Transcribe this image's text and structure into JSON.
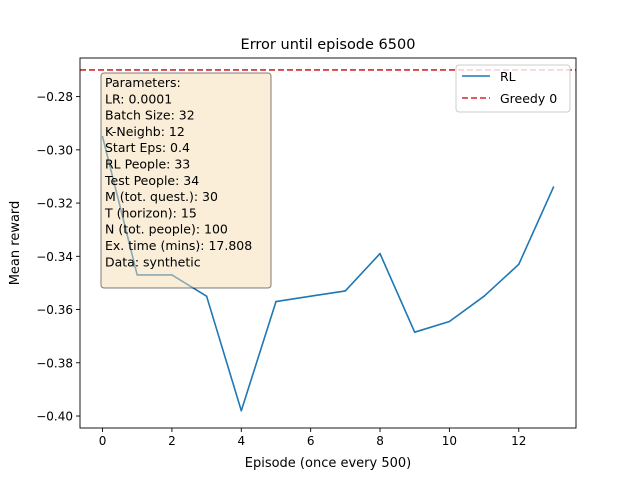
{
  "chart_data": {
    "type": "line",
    "title": "Error until episode 6500",
    "xlabel": "Episode (once every 500)",
    "ylabel": "Mean reward",
    "xlim": [
      -0.65,
      13.65
    ],
    "ylim": [
      -0.4045,
      -0.2655
    ],
    "xticks": [
      0,
      2,
      4,
      6,
      8,
      10,
      12
    ],
    "xtick_labels": [
      "0",
      "2",
      "4",
      "6",
      "8",
      "10",
      "12"
    ],
    "yticks": [
      -0.28,
      -0.3,
      -0.32,
      -0.34,
      -0.36,
      -0.38,
      -0.4
    ],
    "ytick_labels": [
      "−0.28",
      "−0.30",
      "−0.32",
      "−0.34",
      "−0.36",
      "−0.38",
      "−0.40"
    ],
    "series": [
      {
        "name": "RL",
        "color": "#1f77b4",
        "style": "solid",
        "x": [
          0,
          1,
          2,
          3,
          4,
          5,
          6,
          7,
          8,
          9,
          10,
          11,
          12,
          13
        ],
        "values": [
          -0.295,
          -0.347,
          -0.347,
          -0.355,
          -0.398,
          -0.357,
          -0.355,
          -0.353,
          -0.339,
          -0.3685,
          -0.3645,
          -0.355,
          -0.343,
          -0.314
        ]
      },
      {
        "name": "Greedy 0",
        "color": "#d62728",
        "style": "dashed",
        "y": -0.27
      }
    ],
    "legend": {
      "placement": "top-right",
      "entries": [
        "RL",
        "Greedy 0"
      ]
    },
    "grid": false,
    "annotation": {
      "lines": [
        "Parameters:",
        "LR: 0.0001",
        "Batch Size: 32",
        "K-Neighb: 12",
        "Start Eps: 0.4",
        "RL People: 33",
        "Test People: 34",
        "M (tot. quest.): 30",
        "T (horizon): 15",
        "N (tot. people): 100",
        "Ex. time (mins): 17.808",
        "Data: synthetic"
      ],
      "background": "#f5deb3"
    }
  }
}
